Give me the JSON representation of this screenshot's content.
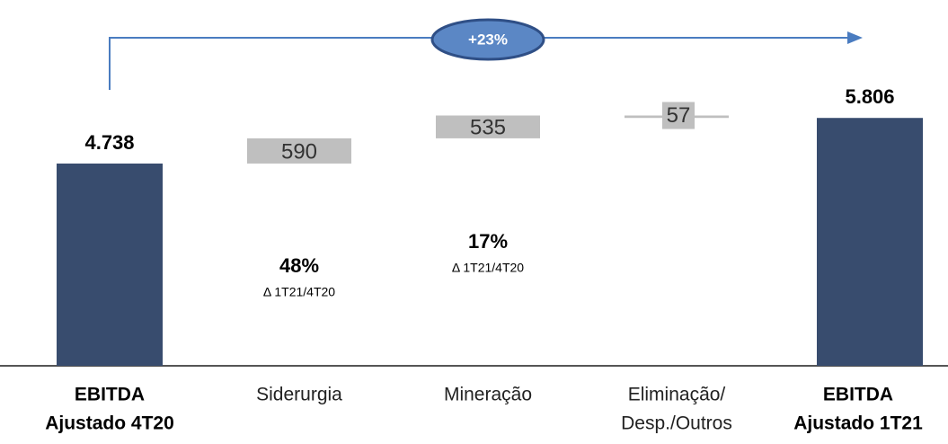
{
  "chart_data": {
    "type": "waterfall",
    "categories": [
      [
        "EBITDA",
        "Ajustado 4T20"
      ],
      [
        "Siderurgia"
      ],
      [
        "Mineração"
      ],
      [
        "Eliminação/",
        "Desp./Outros"
      ],
      [
        "EBITDA",
        "Ajustado 1T21"
      ]
    ],
    "values": [
      4738,
      590,
      535,
      -57,
      5806
    ],
    "value_labels": [
      "4.738",
      "590",
      "535",
      "57",
      "5.806"
    ],
    "totals": [
      true,
      false,
      false,
      false,
      true
    ],
    "colors": {
      "total": "#384c6e",
      "step": "#bfbfbf"
    },
    "ylim": [
      0,
      8000
    ],
    "annotations": [
      null,
      {
        "text": "48%",
        "sub": "Δ 1T21/4T20"
      },
      {
        "text": "17%",
        "sub": "Δ 1T21/4T20"
      },
      null,
      null
    ],
    "growth": "+23%"
  }
}
